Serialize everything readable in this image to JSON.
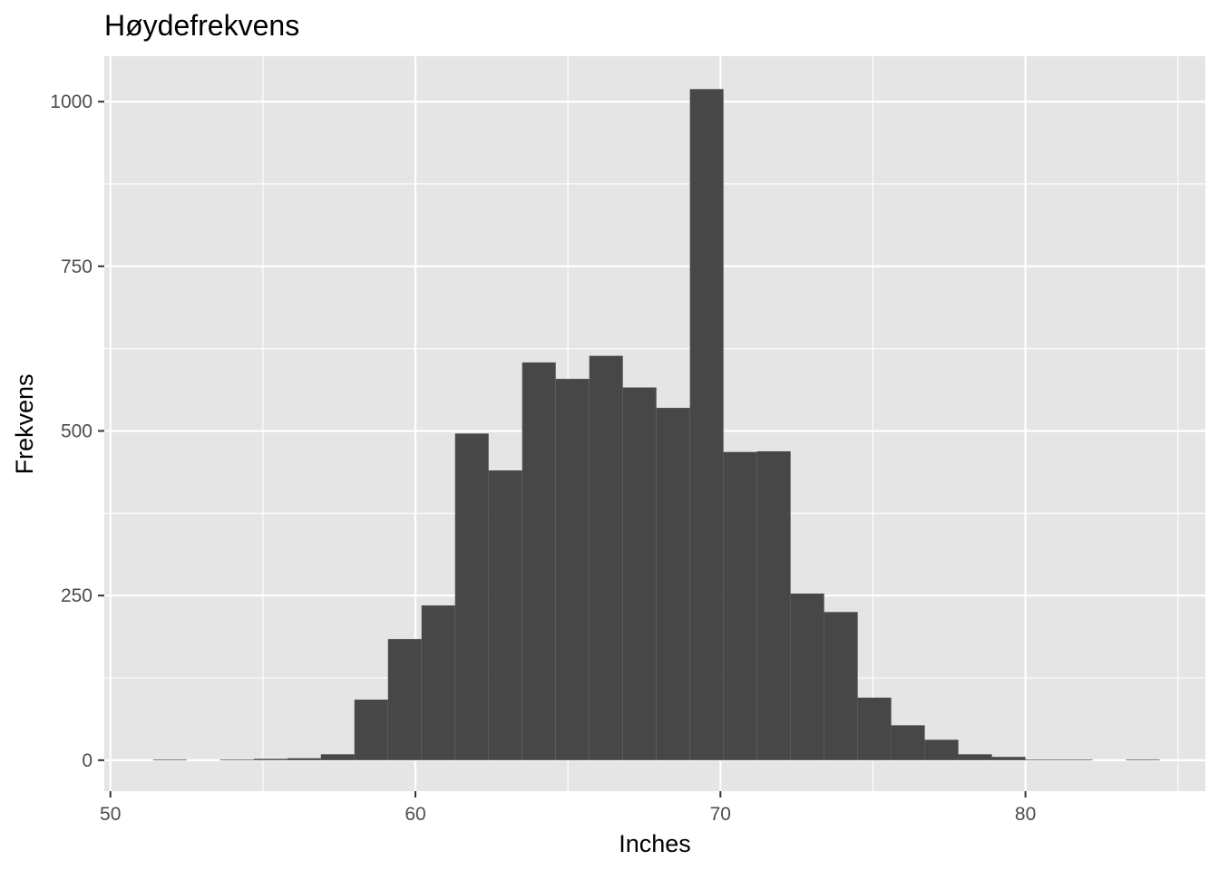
{
  "chart_data": {
    "type": "bar",
    "subtype": "histogram",
    "title": "Høydefrekvens",
    "xlabel": "Inches",
    "ylabel": "Frekvens",
    "xlim": [
      49.8,
      85.9
    ],
    "ylim": [
      -47,
      1069
    ],
    "x_ticks": [
      50,
      60,
      70,
      80
    ],
    "y_ticks": [
      0,
      250,
      500,
      750,
      1000
    ],
    "x_minor": [
      55,
      65,
      75,
      85
    ],
    "y_minor": [
      125,
      375,
      625,
      875
    ],
    "bin_width": 1.1,
    "bins": [
      {
        "x0": 51.4,
        "x1": 52.5,
        "count": 1
      },
      {
        "x0": 52.5,
        "x1": 53.6,
        "count": 0
      },
      {
        "x0": 53.6,
        "x1": 54.7,
        "count": 1
      },
      {
        "x0": 54.7,
        "x1": 55.8,
        "count": 2
      },
      {
        "x0": 55.8,
        "x1": 56.9,
        "count": 3
      },
      {
        "x0": 56.9,
        "x1": 58.0,
        "count": 9
      },
      {
        "x0": 58.0,
        "x1": 59.1,
        "count": 92
      },
      {
        "x0": 59.1,
        "x1": 60.2,
        "count": 184
      },
      {
        "x0": 60.2,
        "x1": 61.3,
        "count": 235
      },
      {
        "x0": 61.3,
        "x1": 62.4,
        "count": 496
      },
      {
        "x0": 62.4,
        "x1": 63.5,
        "count": 440
      },
      {
        "x0": 63.5,
        "x1": 64.6,
        "count": 604
      },
      {
        "x0": 64.6,
        "x1": 65.7,
        "count": 579
      },
      {
        "x0": 65.7,
        "x1": 66.8,
        "count": 614
      },
      {
        "x0": 66.8,
        "x1": 67.9,
        "count": 566
      },
      {
        "x0": 67.9,
        "x1": 69.0,
        "count": 535
      },
      {
        "x0": 69.0,
        "x1": 70.1,
        "count": 1019
      },
      {
        "x0": 70.1,
        "x1": 71.2,
        "count": 468
      },
      {
        "x0": 71.2,
        "x1": 72.3,
        "count": 469
      },
      {
        "x0": 72.3,
        "x1": 73.4,
        "count": 253
      },
      {
        "x0": 73.4,
        "x1": 74.5,
        "count": 225
      },
      {
        "x0": 74.5,
        "x1": 75.6,
        "count": 95
      },
      {
        "x0": 75.6,
        "x1": 76.7,
        "count": 53
      },
      {
        "x0": 76.7,
        "x1": 77.8,
        "count": 31
      },
      {
        "x0": 77.8,
        "x1": 78.9,
        "count": 9
      },
      {
        "x0": 78.9,
        "x1": 80.0,
        "count": 5
      },
      {
        "x0": 80.0,
        "x1": 81.1,
        "count": 1
      },
      {
        "x0": 81.1,
        "x1": 82.2,
        "count": 1
      },
      {
        "x0": 82.2,
        "x1": 83.3,
        "count": 0
      },
      {
        "x0": 83.3,
        "x1": 84.4,
        "count": 1
      }
    ],
    "colors": {
      "panel_background": "#e5e5e5",
      "grid": "#ffffff",
      "bar_fill": "#474747",
      "tick_label": "#4d4d4d",
      "tick_mark": "#333333"
    }
  }
}
